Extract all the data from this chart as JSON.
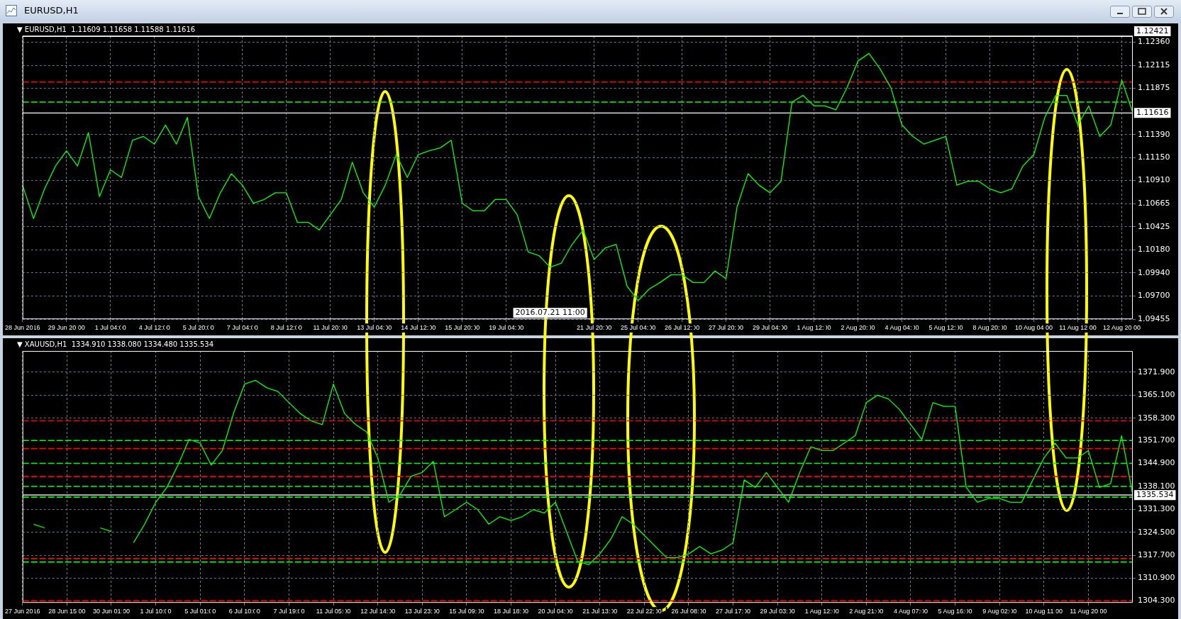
{
  "chart_data": [
    {
      "type": "line",
      "title": "EURUSD,H1",
      "subtitle": "▼ EURUSD,H1  1.11609 1.11658 1.11588 1.11616",
      "categories": [
        "28 Jun 2016",
        null,
        null,
        null,
        "29 Jun 20:00",
        null,
        null,
        null,
        "1 Jul 04:00",
        null,
        null,
        null,
        "4 Jul 12:00",
        null,
        null,
        null,
        "5 Jul 20:00",
        null,
        null,
        null,
        "7 Jul 04:00",
        null,
        null,
        null,
        "8 Jul 12:00",
        null,
        null,
        null,
        "11 Jul 20:00",
        null,
        null,
        null,
        "13 Jul 04:00",
        null,
        null,
        null,
        "14 Jul 12:00",
        null,
        null,
        null,
        "15 Jul 20:00",
        null,
        null,
        null,
        "19 Jul 04:00",
        null,
        null,
        null,
        null,
        null,
        null,
        null,
        "21 Jul 20:00",
        null,
        null,
        null,
        "25 Jul 04:00",
        null,
        null,
        null,
        "26 Jul 12:00",
        null,
        null,
        null,
        "27 Jul 20:00",
        null,
        null,
        null,
        "29 Jul 04:00",
        null,
        null,
        null,
        "1 Aug 12:00",
        null,
        null,
        null,
        "2 Aug 20:00",
        null,
        null,
        null,
        "4 Aug 04:00",
        null,
        null,
        null,
        "5 Aug 12:00",
        null,
        null,
        null,
        "8 Aug 20:00",
        null,
        null,
        null,
        "10 Aug 04:00",
        null,
        null,
        null,
        "11 Aug 12:00",
        null,
        null,
        null,
        "12 Aug 20:00",
        null
      ],
      "series": [
        {
          "color": "#00ff00",
          "values": [
            1.1086,
            1.1051,
            1.1082,
            1.1106,
            1.1122,
            1.1106,
            1.1141,
            1.1074,
            1.1102,
            1.1094,
            1.1133,
            1.1137,
            1.1129,
            1.1149,
            1.1129,
            1.1157,
            1.1074,
            1.1051,
            1.1078,
            1.1098,
            1.1086,
            1.1067,
            1.1071,
            1.1078,
            1.1078,
            1.1047,
            1.1047,
            1.1039,
            1.1055,
            1.1071,
            1.111,
            1.1078,
            1.1063,
            1.1086,
            1.1118,
            1.1094,
            1.1118,
            1.1122,
            1.1125,
            1.1133,
            1.1067,
            1.1059,
            1.1059,
            1.1071,
            1.1071,
            1.1055,
            1.1016,
            1.1012,
            1.1,
            1.1004,
            1.1024,
            1.1039,
            1.1008,
            1.102,
            1.1024,
            1.098,
            1.0965,
            1.0977,
            1.0984,
            1.0992,
            1.0992,
            1.0984,
            1.0984,
            1.0996,
            1.0988,
            1.1063,
            1.1098,
            1.1086,
            1.1078,
            1.109,
            1.1173,
            1.118,
            1.1169,
            1.1169,
            1.1165,
            1.1188,
            1.1216,
            1.1224,
            1.1208,
            1.1188,
            1.1149,
            1.1137,
            1.1129,
            1.1133,
            1.1137,
            1.1086,
            1.109,
            1.109,
            1.1082,
            1.1078,
            1.1082,
            1.1106,
            1.1118,
            1.1157,
            1.118,
            1.118,
            1.1149,
            1.1169,
            1.1137,
            1.1149,
            1.1196,
            1.1162
          ]
        }
      ],
      "ylim": [
        1.09455,
        1.12421
      ],
      "yticks": [
        {
          "value": 1.1236,
          "label": "1.12360"
        },
        1.12115,
        1.11875,
        {
          "value": 1.1139,
          "label": "1.11390"
        },
        {
          "value": 1.1115,
          "label": "1.11150"
        },
        {
          "value": 1.1091,
          "label": "1.10910"
        },
        1.10665,
        1.10425,
        {
          "value": 1.1018,
          "label": "1.10180"
        },
        {
          "value": 1.0994,
          "label": "1.09940"
        },
        {
          "value": 1.097,
          "label": "1.09700"
        },
        1.09455
      ],
      "grid": true,
      "legend": false,
      "line_style": "solid",
      "ref_lines": [
        {
          "axis": "y",
          "value": 1.12421,
          "label": "1.12421",
          "color": "#ffffff",
          "line_style": "solid"
        },
        {
          "axis": "y",
          "value": 1.1194,
          "color": "#ff0000",
          "line_style": "dashed"
        },
        {
          "axis": "y",
          "value": 1.1173,
          "color": "#00ff00",
          "line_style": "dashed"
        },
        {
          "axis": "y",
          "value": 1.11616,
          "label": "1.11616",
          "color": "#c0c0c0",
          "line_style": "solid"
        }
      ],
      "annotations": [
        "2016.07.21 11:00"
      ]
    },
    {
      "type": "line",
      "title": "▼ XAUUSD,H1  1334.910 1338.080 1334.480 1335.534",
      "categories": [
        "27 Jun 2016",
        null,
        null,
        null,
        "28 Jun 15:00",
        null,
        null,
        null,
        "30 Jun 01:00",
        null,
        null,
        null,
        "1 Jul 10:00",
        null,
        null,
        null,
        "5 Jul 01:00",
        null,
        null,
        null,
        "6 Jul 10:00",
        null,
        null,
        null,
        "7 Jul 19:00",
        null,
        null,
        null,
        "11 Jul 05:00",
        null,
        null,
        null,
        "12 Jul 14:00",
        null,
        null,
        null,
        "13 Jul 23:00",
        null,
        null,
        null,
        "15 Jul 09:00",
        null,
        null,
        null,
        "18 Jul 18:00",
        null,
        null,
        null,
        "20 Jul 04:00",
        null,
        null,
        null,
        "21 Jul 13:00",
        null,
        null,
        null,
        "22 Jul 22:00",
        null,
        null,
        null,
        "26 Jul 08:00",
        null,
        null,
        null,
        "27 Jul 17:00",
        null,
        null,
        null,
        "29 Jul 03:00",
        null,
        null,
        null,
        "1 Aug 12:00",
        null,
        null,
        null,
        "2 Aug 21:00",
        null,
        null,
        null,
        "4 Aug 07:00",
        null,
        null,
        null,
        "5 Aug 16:00",
        null,
        null,
        null,
        "9 Aug 02:00",
        null,
        null,
        null,
        "10 Aug 11:00",
        null,
        null,
        null,
        "11 Aug 20:00",
        null,
        null,
        null,
        null
      ],
      "series": [
        {
          "color": "#00ff00",
          "values": [
            null,
            1326.9,
            1325.8,
            null,
            null,
            null,
            null,
            1325.8,
            1324.7,
            null,
            1321.4,
            1326.9,
            1333.4,
            1337.8,
            1344.4,
            1352.0,
            1350.9,
            1344.4,
            1348.7,
            1359.7,
            1368.4,
            1369.5,
            1367.3,
            1366.2,
            1362.9,
            1359.7,
            1357.5,
            1356.4,
            1368.4,
            1359.7,
            1356.4,
            1354.2,
            1346.5,
            1333.4,
            1335.6,
            1341.1,
            1342.2,
            1345.5,
            1329.1,
            1331.2,
            1333.4,
            1331.2,
            1326.9,
            1329.1,
            1328.0,
            1329.1,
            1331.2,
            1330.2,
            1333.4,
            1324.7,
            1315.9,
            1314.9,
            1318.1,
            1322.5,
            1329.1,
            1326.9,
            1323.6,
            1320.3,
            1317.0,
            1317.0,
            1318.1,
            1320.3,
            1318.1,
            1319.2,
            1321.4,
            1340.0,
            1337.8,
            1342.2,
            1337.8,
            1333.4,
            1342.2,
            1349.8,
            1348.7,
            1348.7,
            1350.9,
            1353.1,
            1362.9,
            1365.1,
            1364.0,
            1360.8,
            1356.4,
            1352.0,
            1362.9,
            1361.8,
            1361.8,
            1337.8,
            1333.4,
            1334.5,
            1334.5,
            1333.4,
            1333.4,
            1340.0,
            1346.5,
            1350.9,
            1346.5,
            1346.5,
            1348.7,
            1337.8,
            1338.9,
            1353.1,
            1335.6
          ]
        }
      ],
      "ylim": [
        1303.6,
        1378.2
      ],
      "yticks": [
        {
          "value": 1371.9,
          "label": "1371.900"
        },
        {
          "value": 1365.1,
          "label": "1365.100"
        },
        {
          "value": 1358.3,
          "label": "1358.300"
        },
        {
          "value": 1351.7,
          "label": "1351.700"
        },
        {
          "value": 1344.9,
          "label": "1344.900"
        },
        {
          "value": 1338.1,
          "label": "1338.100"
        },
        {
          "value": 1331.3,
          "label": "1331.300"
        },
        {
          "value": 1324.5,
          "label": "1324.500"
        },
        {
          "value": 1317.7,
          "label": "1317.700"
        },
        {
          "value": 1310.9,
          "label": "1310.900"
        },
        {
          "value": 1304.3,
          "label": "1304.300"
        }
      ],
      "grid": true,
      "legend": false,
      "line_style": "solid",
      "ref_lines": [
        {
          "axis": "y",
          "value": 1357.5,
          "color": "#ff0000",
          "line_style": "dashed"
        },
        {
          "axis": "y",
          "value": 1349.3,
          "color": "#ff0000",
          "line_style": "dashed"
        },
        {
          "axis": "y",
          "value": 1341.0,
          "color": "#ff0000",
          "line_style": "dashed"
        },
        {
          "axis": "y",
          "value": 1316.7,
          "color": "#ff0000",
          "line_style": "dashed"
        },
        {
          "axis": "y",
          "value": 1304.2,
          "color": "#ff0000",
          "line_style": "dashed"
        },
        {
          "axis": "y",
          "value": 1351.7,
          "color": "#00ff00",
          "line_style": "dashed"
        },
        {
          "axis": "y",
          "value": 1344.9,
          "color": "#00ff00",
          "line_style": "dashed"
        },
        {
          "axis": "y",
          "value": 1338.1,
          "color": "#00ff00",
          "line_style": "dashed"
        },
        {
          "axis": "y",
          "value": 1334.9,
          "color": "#00ff00",
          "line_style": "dashed"
        },
        {
          "axis": "y",
          "value": 1315.7,
          "color": "#00ff00",
          "line_style": "dashed"
        },
        {
          "axis": "y",
          "value": 1335.534,
          "label": "1335.534",
          "color": "#c0c0c0",
          "line_style": "solid"
        }
      ]
    }
  ]
}
